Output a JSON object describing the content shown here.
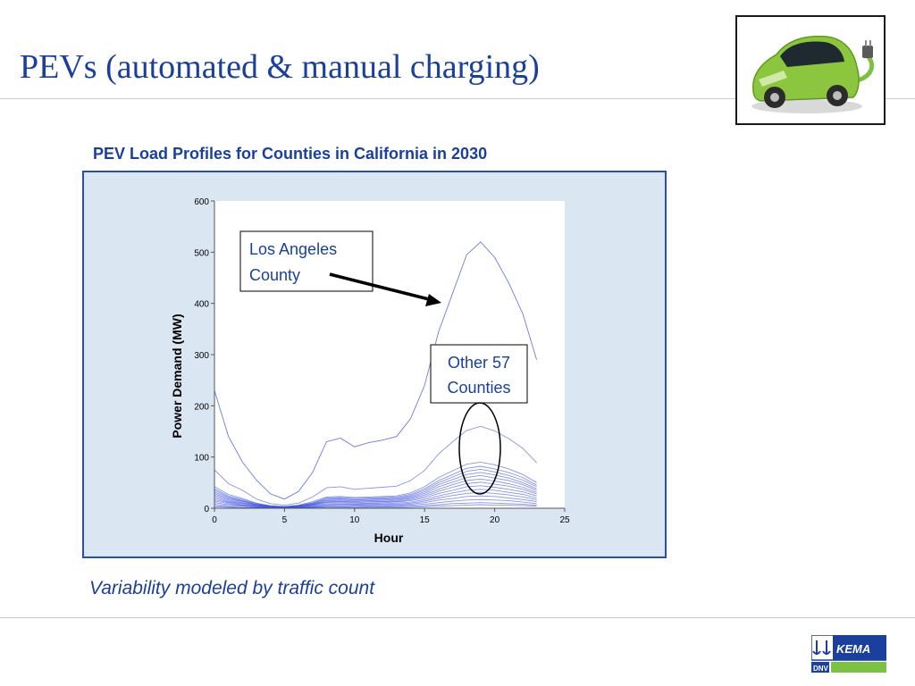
{
  "slide": {
    "title": "PEVs (automated & manual charging)",
    "caption": "Variability modeled by traffic count",
    "title_color": "#1a3f9c",
    "caption_color": "#1a3f9c",
    "car_image": "green-electric-car-icon"
  },
  "logo": {
    "name": "KEMA",
    "sub": "DNV",
    "icon": "anchor-pair-icon"
  },
  "chart_data": {
    "type": "line",
    "title": "PEV Load Profiles for Counties in California in 2030",
    "xlabel": "Hour",
    "ylabel": "Power Demand (MW)",
    "xlim": [
      0,
      25
    ],
    "ylim": [
      0,
      600
    ],
    "xticks": [
      0,
      5,
      10,
      15,
      20,
      25
    ],
    "yticks": [
      0,
      100,
      200,
      300,
      400,
      500,
      600
    ],
    "grid": false,
    "heading_color": "#1a3f9c",
    "line_color": "#3a4fd8",
    "x": [
      0,
      1,
      2,
      3,
      4,
      5,
      6,
      7,
      8,
      9,
      10,
      11,
      12,
      13,
      14,
      15,
      16,
      17,
      18,
      19,
      20,
      21,
      22,
      23
    ],
    "series": [
      {
        "values": [
          230,
          140,
          90,
          55,
          28,
          18,
          33,
          70,
          130,
          137,
          120,
          128,
          133,
          140,
          175,
          240,
          345,
          420,
          495,
          520,
          490,
          440,
          380,
          290
        ]
      },
      {
        "values": [
          75,
          48,
          35,
          18,
          9,
          6,
          10,
          22,
          40,
          42,
          37,
          39,
          41,
          43,
          54,
          74,
          106,
          130,
          152,
          160,
          151,
          136,
          117,
          89
        ]
      },
      {
        "values": [
          42,
          27,
          19,
          10,
          5,
          3,
          6,
          13,
          22,
          23,
          21,
          22,
          23,
          24,
          30,
          42,
          60,
          73,
          86,
          90,
          85,
          77,
          66,
          50
        ]
      },
      {
        "values": [
          38,
          24,
          17,
          9,
          4,
          3,
          5,
          11,
          20,
          21,
          19,
          20,
          21,
          22,
          27,
          38,
          54,
          66,
          78,
          82,
          77,
          70,
          60,
          45
        ]
      },
      {
        "values": [
          35,
          22,
          15,
          8,
          4,
          3,
          5,
          10,
          18,
          19,
          17,
          18,
          19,
          20,
          25,
          35,
          50,
          61,
          72,
          76,
          71,
          64,
          55,
          42
        ]
      },
      {
        "values": [
          32,
          20,
          14,
          7,
          4,
          3,
          5,
          9,
          17,
          18,
          16,
          17,
          18,
          18,
          23,
          32,
          46,
          56,
          66,
          70,
          65,
          59,
          50,
          38
        ]
      },
      {
        "values": [
          29,
          18,
          13,
          7,
          4,
          2,
          4,
          8,
          15,
          16,
          14,
          15,
          16,
          17,
          21,
          29,
          42,
          51,
          60,
          64,
          59,
          54,
          46,
          35
        ]
      },
      {
        "values": [
          26,
          16,
          11,
          6,
          3,
          2,
          4,
          7,
          14,
          14,
          13,
          14,
          14,
          15,
          19,
          26,
          37,
          46,
          54,
          57,
          53,
          48,
          41,
          31
        ]
      },
      {
        "values": [
          23,
          14,
          10,
          5,
          3,
          2,
          3,
          7,
          12,
          13,
          11,
          12,
          13,
          13,
          17,
          23,
          33,
          41,
          48,
          51,
          47,
          43,
          37,
          28
        ]
      },
      {
        "values": [
          20,
          12,
          9,
          5,
          2,
          2,
          3,
          6,
          11,
          11,
          10,
          10,
          11,
          12,
          15,
          20,
          29,
          35,
          42,
          44,
          41,
          37,
          32,
          24
        ]
      },
      {
        "values": [
          17,
          11,
          7,
          4,
          2,
          1,
          2,
          5,
          9,
          9,
          8,
          9,
          9,
          10,
          12,
          17,
          24,
          30,
          35,
          37,
          35,
          31,
          27,
          20
        ]
      },
      {
        "values": [
          14,
          9,
          6,
          3,
          2,
          1,
          2,
          4,
          7,
          8,
          7,
          7,
          8,
          8,
          10,
          14,
          20,
          25,
          29,
          31,
          29,
          26,
          22,
          17
        ]
      },
      {
        "values": [
          11,
          7,
          5,
          3,
          1,
          1,
          2,
          3,
          6,
          6,
          5,
          6,
          6,
          6,
          8,
          11,
          16,
          19,
          23,
          24,
          23,
          20,
          17,
          13
        ]
      },
      {
        "values": [
          8,
          5,
          4,
          2,
          1,
          1,
          1,
          2,
          4,
          4,
          4,
          4,
          4,
          5,
          6,
          8,
          11,
          14,
          16,
          17,
          16,
          15,
          12,
          9
        ]
      },
      {
        "values": [
          5,
          3,
          2,
          1,
          1,
          0,
          1,
          2,
          3,
          3,
          2,
          3,
          3,
          3,
          4,
          5,
          7,
          9,
          10,
          11,
          10,
          9,
          8,
          6
        ]
      },
      {
        "values": [
          3,
          2,
          1,
          1,
          0,
          0,
          0,
          1,
          2,
          2,
          1,
          2,
          2,
          2,
          2,
          3,
          4,
          5,
          6,
          7,
          6,
          6,
          5,
          4
        ]
      }
    ],
    "annotations": [
      {
        "text_lines": [
          "Los Angeles",
          "County"
        ]
      },
      {
        "text_lines": [
          "Other 57",
          "Counties"
        ]
      }
    ]
  }
}
